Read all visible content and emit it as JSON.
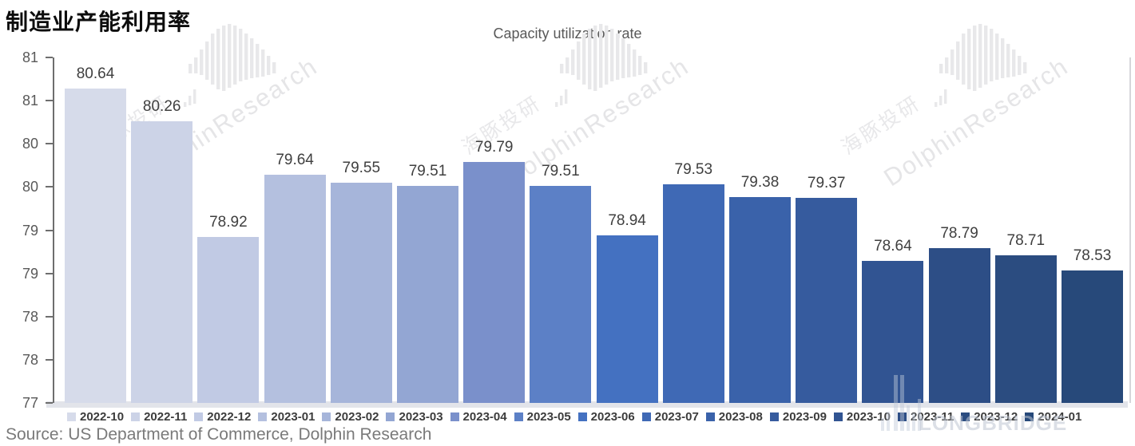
{
  "header": {
    "title": "制造业产能利用率"
  },
  "chart_data": {
    "type": "bar",
    "title": "Capacity utilization rate",
    "categories": [
      "2022-10",
      "2022-11",
      "2022-12",
      "2023-01",
      "2023-02",
      "2023-03",
      "2023-04",
      "2023-05",
      "2023-06",
      "2023-07",
      "2023-08",
      "2023-09",
      "2023-10",
      "2023-11",
      "2023-12",
      "2024-01"
    ],
    "values": [
      80.64,
      80.26,
      78.92,
      79.64,
      79.55,
      79.51,
      79.79,
      79.51,
      78.94,
      79.53,
      79.38,
      79.37,
      78.64,
      78.79,
      78.71,
      78.53
    ],
    "bar_colors": [
      "#d6dbea",
      "#ccd3e7",
      "#c1cae4",
      "#b4c0df",
      "#a6b5da",
      "#93a6d3",
      "#7a90cb",
      "#5c80c6",
      "#4471c1",
      "#3f69b5",
      "#3a62aa",
      "#365b9e",
      "#315492",
      "#2d4e86",
      "#2b4c80",
      "#27497a"
    ],
    "ylim": [
      77,
      81
    ],
    "y_tick_values": [
      81,
      80.5,
      80,
      79.5,
      79,
      78.5,
      78,
      77.5,
      77
    ],
    "y_tick_labels": [
      "81",
      "81",
      "80",
      "80",
      "79",
      "79",
      "78",
      "78",
      "77"
    ],
    "xlabel": "",
    "ylabel": "",
    "grid": false,
    "legend_position": "bottom",
    "data_labels_shown": true
  },
  "watermark": {
    "brand_en": "DolphinResearch",
    "brand_cn": "海豚投研",
    "corner_text": "LONGBRIDGE"
  },
  "footer": {
    "source": "Source: US Department of Commerce, Dolphin Research"
  }
}
